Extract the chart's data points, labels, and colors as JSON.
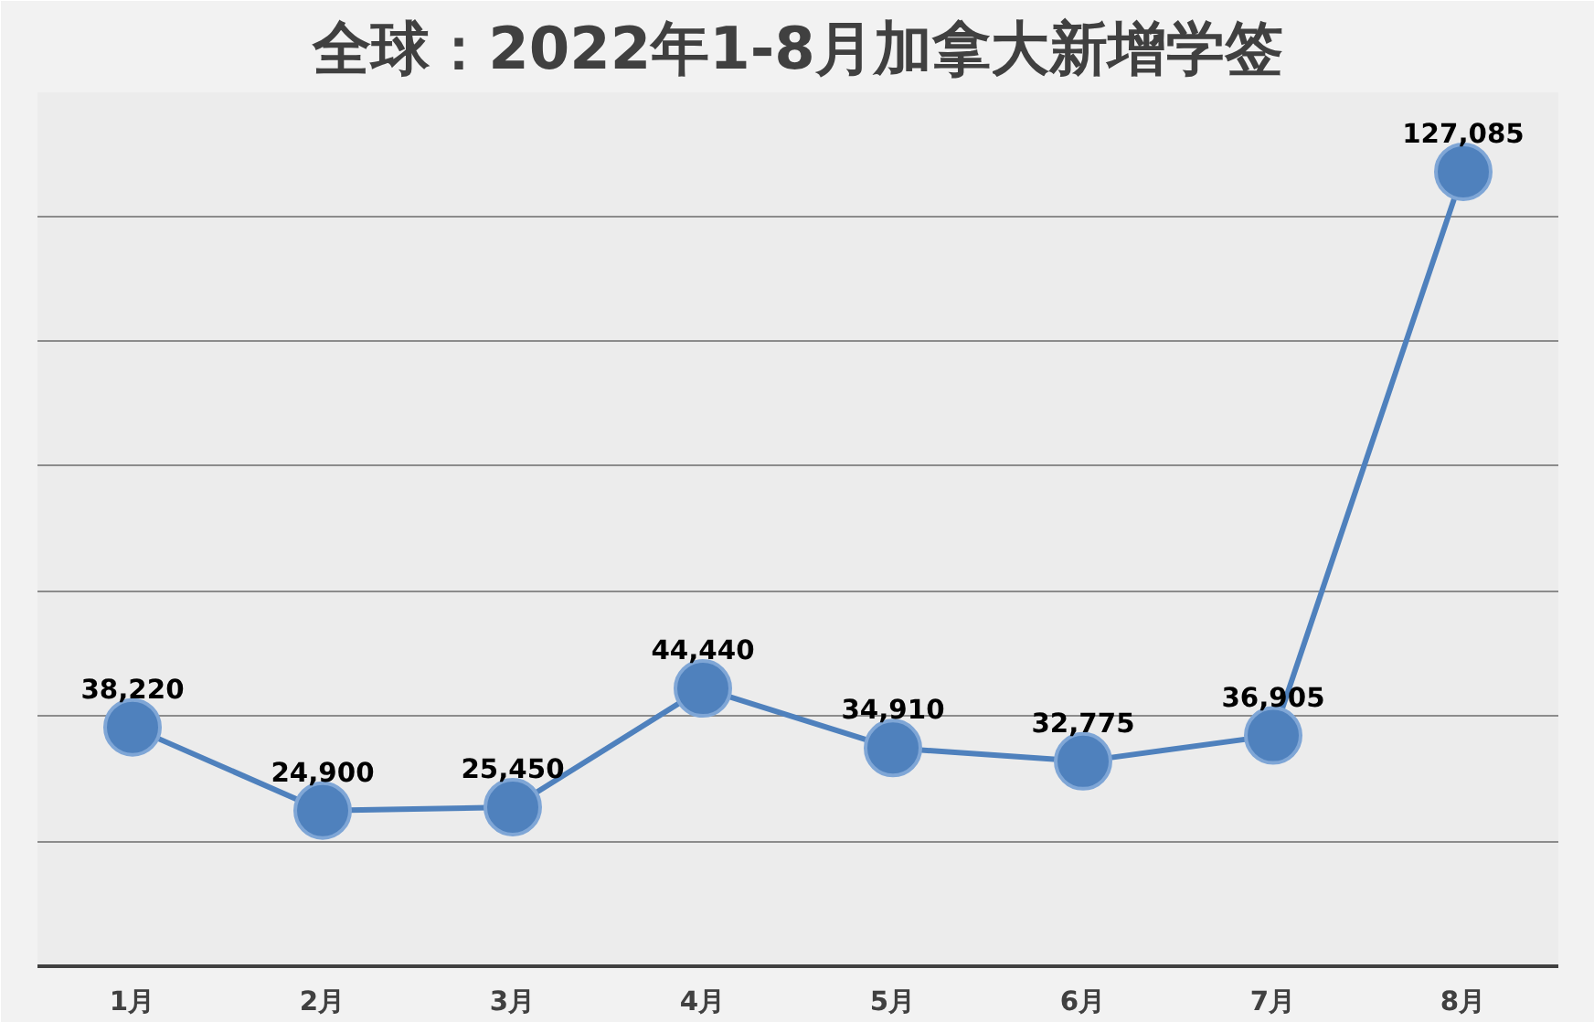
{
  "chart_data": {
    "type": "line",
    "title": "全球：2022年1-8月加拿大新增学签",
    "categories": [
      "1月",
      "2月",
      "3月",
      "4月",
      "5月",
      "6月",
      "7月",
      "8月"
    ],
    "series": [
      {
        "color": "#4f81bd",
        "values": [
          38220,
          24900,
          25450,
          44440,
          34910,
          32775,
          36905,
          127085
        ],
        "value_labels": [
          "38,220",
          "24,900",
          "25,450",
          "44,440",
          "34,910",
          "32,775",
          "36,905",
          "127,085"
        ]
      }
    ],
    "tick_labels": "x",
    "grid": "y",
    "marker": "circle",
    "line_style": "solid"
  }
}
